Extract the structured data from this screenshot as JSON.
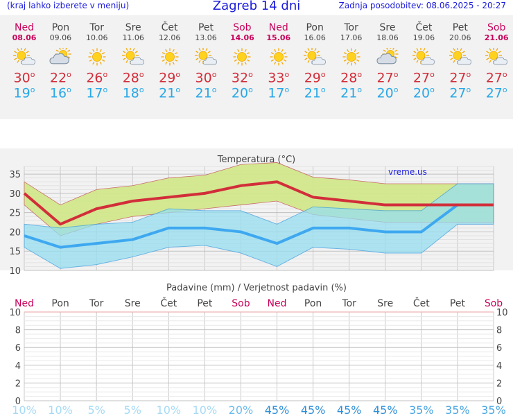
{
  "header": {
    "left_note": "(kraj lahko izberete v meniju)",
    "title": "Zagreb 14 dni",
    "updated": "Zadnja posodobitev: 08.06.2025 - 20:27"
  },
  "colors": {
    "max": "#d22e3a",
    "min": "#2aa8e6",
    "weekend": "#c8005a",
    "max_band": "#d2e88c",
    "min_band": "#96dff0",
    "overlap": "#7ccf8a"
  },
  "days": [
    {
      "name": "Ned",
      "date": "08.06",
      "weekend": true,
      "icon": "sun-cloud-icon",
      "max": "30",
      "min": "19"
    },
    {
      "name": "Pon",
      "date": "09.06",
      "weekend": false,
      "icon": "cloud-sun-icon",
      "max": "22",
      "min": "16"
    },
    {
      "name": "Tor",
      "date": "10.06",
      "weekend": false,
      "icon": "sun-icon",
      "max": "26",
      "min": "17"
    },
    {
      "name": "Sre",
      "date": "11.06",
      "weekend": false,
      "icon": "sun-cloud-icon",
      "max": "28",
      "min": "18"
    },
    {
      "name": "Čet",
      "date": "12.06",
      "weekend": false,
      "icon": "sun-icon",
      "max": "29",
      "min": "21"
    },
    {
      "name": "Pet",
      "date": "13.06",
      "weekend": false,
      "icon": "sun-cloud-icon",
      "max": "30",
      "min": "21"
    },
    {
      "name": "Sob",
      "date": "14.06",
      "weekend": true,
      "icon": "sun-icon",
      "max": "32",
      "min": "20"
    },
    {
      "name": "Ned",
      "date": "15.06",
      "weekend": true,
      "icon": "sun-icon",
      "max": "33",
      "min": "17"
    },
    {
      "name": "Pon",
      "date": "16.06",
      "weekend": false,
      "icon": "sun-cloud-icon",
      "max": "29",
      "min": "21"
    },
    {
      "name": "Tor",
      "date": "17.06",
      "weekend": false,
      "icon": "sun-icon",
      "max": "28",
      "min": "21"
    },
    {
      "name": "Sre",
      "date": "18.06",
      "weekend": false,
      "icon": "cloud-sun-icon",
      "max": "27",
      "min": "20"
    },
    {
      "name": "Čet",
      "date": "19.06",
      "weekend": false,
      "icon": "sun-cloud-icon",
      "max": "27",
      "min": "20"
    },
    {
      "name": "Pet",
      "date": "20.06",
      "weekend": false,
      "icon": "sun-cloud-icon",
      "max": "27",
      "min": "27"
    },
    {
      "name": "Sob",
      "date": "21.06",
      "weekend": true,
      "icon": "sun-cloud-icon",
      "max": "27",
      "min": "27"
    }
  ],
  "chart_data": [
    {
      "type": "line",
      "title": "Temperatura (",
      "title_unit": "°C",
      "title_close": ")",
      "watermark": "vreme.us",
      "ylim": [
        10,
        37
      ],
      "yticks": [
        10,
        15,
        20,
        25,
        30,
        35
      ],
      "grid": true,
      "series": [
        {
          "values": [
            30,
            22,
            26,
            28,
            29,
            30,
            32,
            33,
            29,
            28,
            27,
            27,
            27,
            27
          ]
        },
        {
          "values": [
            19,
            16,
            17,
            18,
            21,
            21,
            20,
            17,
            21,
            21,
            20,
            20,
            27,
            27
          ]
        }
      ],
      "max_band": {
        "upper": [
          33,
          27,
          31,
          32,
          34,
          34.7,
          37.5,
          38,
          34.2,
          33.5,
          32.5,
          32.5,
          32.5,
          32.5
        ],
        "lower": [
          27,
          19,
          22,
          24,
          25,
          26,
          27,
          28,
          24.5,
          23.5,
          22.5,
          22.5,
          22.5,
          22.5
        ]
      },
      "min_band": {
        "upper": [
          22,
          21,
          22,
          22.5,
          26,
          25.5,
          25.5,
          22,
          26.5,
          26,
          25.5,
          25.5,
          32.5,
          32.5
        ],
        "lower": [
          16,
          10.5,
          11.5,
          13.5,
          16,
          16.5,
          14.5,
          11,
          16,
          15.5,
          14.5,
          14.5,
          22,
          22
        ]
      }
    },
    {
      "type": "bar",
      "title": "Padavine (mm) / Verjetnost padavin (%)",
      "ylim": [
        0,
        10
      ],
      "yticks": [
        0,
        2,
        4,
        6,
        8,
        10
      ],
      "categories": [
        "Ned",
        "Pon",
        "Tor",
        "Sre",
        "Čet",
        "Pet",
        "Sob",
        "Ned",
        "Pon",
        "Tor",
        "Sre",
        "Čet",
        "Pet",
        "Sob"
      ],
      "weekend": [
        true,
        false,
        false,
        false,
        false,
        false,
        true,
        true,
        false,
        false,
        false,
        false,
        false,
        true
      ],
      "grid": true,
      "precip_mm": [
        0,
        0,
        0,
        0,
        0,
        0,
        0,
        0,
        0,
        0,
        0,
        0,
        0,
        0
      ],
      "probability": [
        "10%",
        "10%",
        "5%",
        "5%",
        "10%",
        "10%",
        "20%",
        "45%",
        "45%",
        "45%",
        "45%",
        "35%",
        "35%",
        "35%"
      ],
      "probability_values": [
        10,
        10,
        5,
        5,
        10,
        10,
        20,
        45,
        45,
        45,
        45,
        35,
        35,
        35
      ]
    }
  ]
}
